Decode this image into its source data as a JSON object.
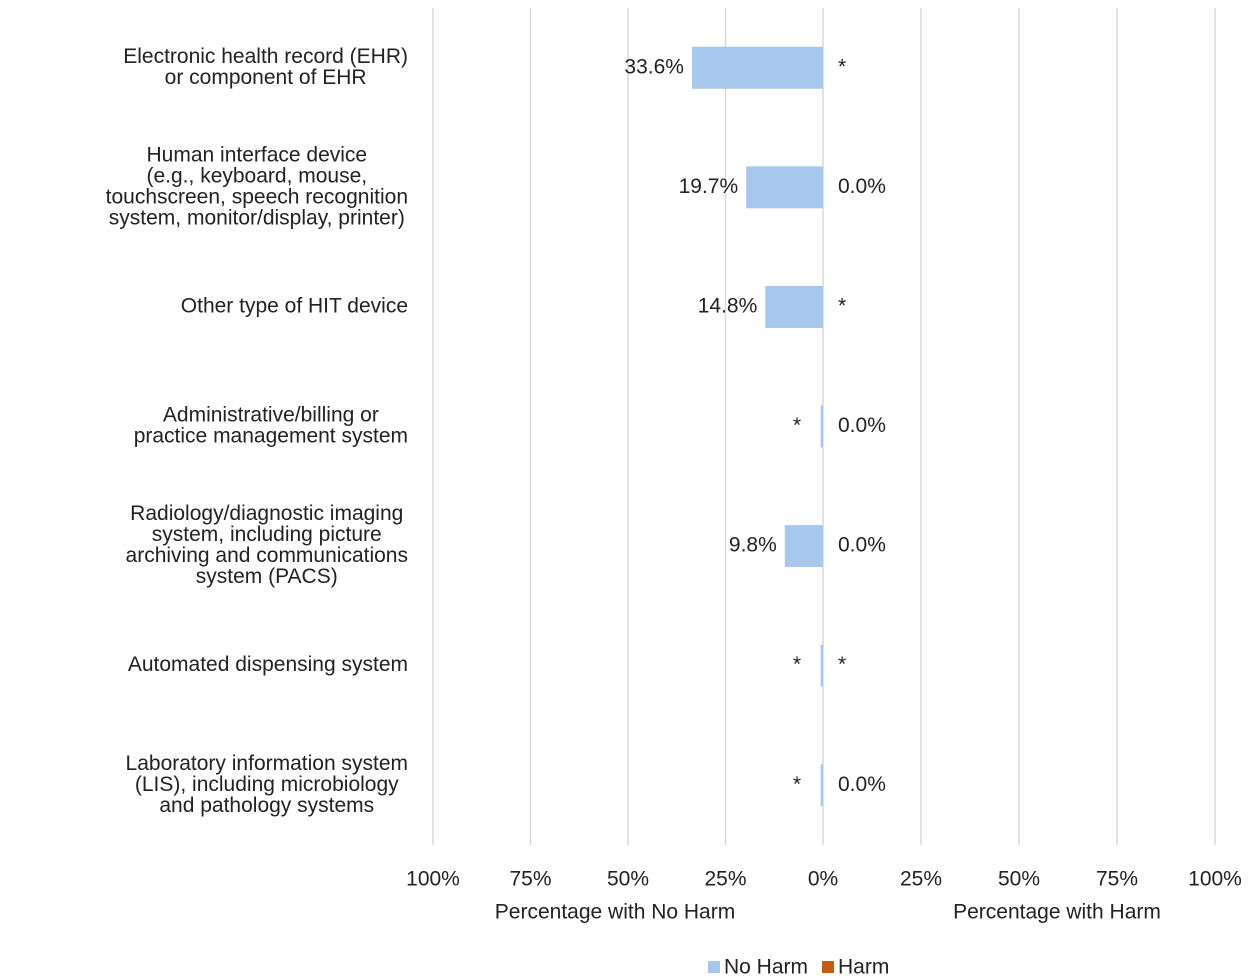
{
  "chart_data": {
    "type": "diverging-bar",
    "categories": [
      [
        "Electronic health record (EHR)",
        "or component of EHR"
      ],
      [
        "Human interface device",
        "(e.g., keyboard, mouse,",
        "touchscreen, speech recognition",
        "system, monitor/display, printer)"
      ],
      [
        "Other type of HIT device"
      ],
      [
        "Administrative/billing or",
        "practice management system"
      ],
      [
        "Radiology/diagnostic imaging",
        "system, including picture",
        "archiving and communications",
        "system (PACS)"
      ],
      [
        "Automated dispensing system"
      ],
      [
        "Laboratory information system",
        "(LIS), including microbiology",
        "and pathology systems"
      ]
    ],
    "series": [
      {
        "name": "No Harm",
        "color": "#a6c8ec",
        "side": "left",
        "values": [
          33.6,
          19.7,
          14.8,
          0.6,
          9.8,
          0.6,
          0.6
        ],
        "value_labels": [
          "33.6%",
          "19.7%",
          "14.8%",
          "*",
          "9.8%",
          "*",
          "*"
        ]
      },
      {
        "name": "Harm",
        "color": "#c55a11",
        "side": "right",
        "values": [
          null,
          0,
          null,
          0,
          0,
          null,
          0
        ],
        "value_labels": [
          "*",
          "0.0%",
          "*",
          "0.0%",
          "0.0%",
          "*",
          "0.0%"
        ]
      }
    ],
    "left_axis": {
      "label": "Percentage with No Harm",
      "xlim": [
        100,
        0
      ],
      "xticks": [
        {
          "value": 100,
          "label": "100%"
        },
        {
          "value": 75,
          "label": "75%"
        },
        {
          "value": 50,
          "label": "50%"
        },
        {
          "value": 25,
          "label": "25%"
        },
        {
          "value": 0,
          "label": "0%"
        }
      ]
    },
    "right_axis": {
      "label": "Percentage with Harm",
      "xlim": [
        0,
        100
      ],
      "xticks": [
        {
          "value": 25,
          "label": "25%"
        },
        {
          "value": 50,
          "label": "50%"
        },
        {
          "value": 75,
          "label": "75%"
        },
        {
          "value": 100,
          "label": "100%"
        }
      ]
    },
    "grid": true,
    "legend": "bottom"
  }
}
